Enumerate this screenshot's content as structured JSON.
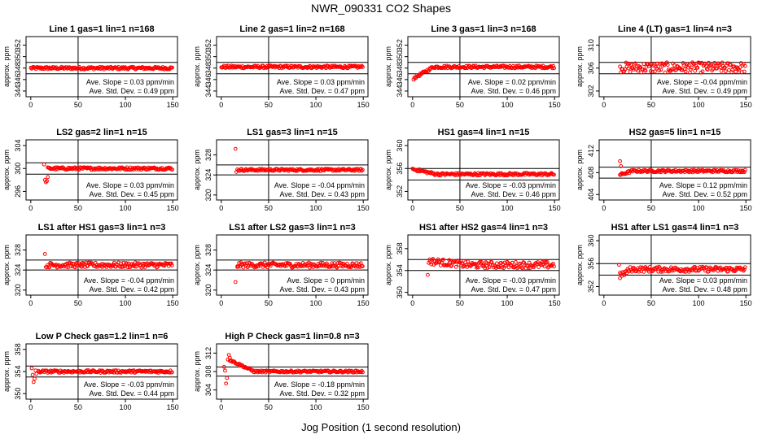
{
  "title": "NWR_090331  CO2 Shapes",
  "xlabel": "Jog Position (1 second resolution)",
  "colors": {
    "points": "#ff0000",
    "axes": "#000000"
  },
  "chart_data": [
    {
      "type": "scatter",
      "title": "Line 1 gas=1 lin=1 n=168",
      "ylabel": "approx. ppm",
      "ylim": [
        343,
        353.5
      ],
      "yticks": [
        344,
        346,
        348,
        350,
        352
      ],
      "xlim": [
        -5,
        155
      ],
      "xticks": [
        0,
        50,
        100,
        150
      ],
      "vline": 50,
      "hlines": [
        349,
        347
      ],
      "series": [
        {
          "name": "",
          "profile": {
            "type": "flat",
            "level": 348
          }
        }
      ],
      "outliers": [],
      "slope": "Ave. Slope =  0.03  ppm/min",
      "stddev": "Ave. Std. Dev. =  0.49  ppm"
    },
    {
      "type": "scatter",
      "title": "Line 2 gas=1 lin=2 n=168",
      "ylabel": "approx. ppm",
      "ylim": [
        343,
        353.5
      ],
      "yticks": [
        344,
        346,
        348,
        350,
        352
      ],
      "xlim": [
        -5,
        155
      ],
      "xticks": [
        0,
        50,
        100,
        150
      ],
      "vline": 50,
      "hlines": [
        349,
        347
      ],
      "series": [
        {
          "name": "",
          "profile": {
            "type": "flat",
            "level": 348.2
          }
        }
      ],
      "outliers": [],
      "slope": "Ave. Slope =  0.03  ppm/min",
      "stddev": "Ave. Std. Dev. =  0.47  ppm"
    },
    {
      "type": "scatter",
      "title": "Line 3 gas=1 lin=3 n=168",
      "ylabel": "approx. ppm",
      "ylim": [
        343,
        353.5
      ],
      "yticks": [
        344,
        346,
        348,
        350,
        352
      ],
      "xlim": [
        -5,
        155
      ],
      "xticks": [
        0,
        50,
        100,
        150
      ],
      "vline": 50,
      "hlines": [
        349,
        347
      ],
      "series": [
        {
          "name": "",
          "profile": {
            "type": "rise",
            "from": 346.2,
            "level": 348.2,
            "start": 1,
            "end": 22
          }
        }
      ],
      "outliers": [],
      "slope": "Ave. Slope =  0.02  ppm/min",
      "stddev": "Ave. Std. Dev. =  0.46  ppm"
    },
    {
      "type": "scatter",
      "title": "Line 4 (LT) gas=1 lin=4 n=3",
      "ylabel": "approx. ppm",
      "ylim": [
        301,
        311.5
      ],
      "yticks": [
        302,
        306,
        310
      ],
      "xlim": [
        -5,
        155
      ],
      "xticks": [
        0,
        50,
        100,
        150
      ],
      "vline": 50,
      "hlines": [
        307,
        305
      ],
      "series": [
        {
          "name": "",
          "profile": {
            "type": "noisy",
            "level": 306.1,
            "start": 17,
            "noise": 0.9
          }
        }
      ],
      "outliers": [],
      "slope": "Ave. Slope =  -0.04  ppm/min",
      "stddev": "Ave. Std. Dev. =  0.49  ppm"
    },
    {
      "type": "scatter",
      "title": "LS2 gas=2 lin=1 n=15",
      "ylabel": "approx. ppm",
      "ylim": [
        294.5,
        305
      ],
      "yticks": [
        296,
        300,
        304
      ],
      "xlim": [
        -5,
        155
      ],
      "xticks": [
        0,
        50,
        100,
        150
      ],
      "vline": 50,
      "hlines": [
        301,
        299
      ],
      "series": [
        {
          "name": "",
          "profile": {
            "type": "flat",
            "level": 300,
            "start": 18
          }
        }
      ],
      "outliers": [
        [
          14,
          300.7
        ],
        [
          15,
          298
        ],
        [
          16,
          297.6
        ],
        [
          17,
          297.8
        ],
        [
          18,
          298.5
        ]
      ],
      "slope": "Ave. Slope =  0.03  ppm/min",
      "stddev": "Ave. Std. Dev. =  0.45  ppm"
    },
    {
      "type": "scatter",
      "title": "LS1 gas=3 lin=1 n=15",
      "ylabel": "approx. ppm",
      "ylim": [
        319,
        331
      ],
      "yticks": [
        320,
        324,
        328
      ],
      "xlim": [
        -5,
        155
      ],
      "xticks": [
        0,
        50,
        100,
        150
      ],
      "vline": 50,
      "hlines": [
        326,
        324
      ],
      "series": [
        {
          "name": "",
          "profile": {
            "type": "flat",
            "level": 325,
            "start": 17
          }
        }
      ],
      "outliers": [
        [
          15,
          329.2
        ],
        [
          16,
          324.6
        ]
      ],
      "slope": "Ave. Slope =  -0.04  ppm/min",
      "stddev": "Ave. Std. Dev. =  0.43  ppm"
    },
    {
      "type": "scatter",
      "title": "HS1 gas=4 lin=1 n=15",
      "ylabel": "approx. ppm",
      "ylim": [
        350.5,
        361
      ],
      "yticks": [
        352,
        356,
        360
      ],
      "xlim": [
        -5,
        155
      ],
      "xticks": [
        0,
        50,
        100,
        150
      ],
      "vline": 50,
      "hlines": [
        356,
        354
      ],
      "series": [
        {
          "name": "",
          "profile": {
            "type": "decay",
            "from": 355.9,
            "level": 355,
            "start": 0,
            "end": 25
          }
        }
      ],
      "outliers": [],
      "slope": "Ave. Slope =  -0.03  ppm/min",
      "stddev": "Ave. Std. Dev. =  0.46  ppm"
    },
    {
      "type": "scatter",
      "title": "HS2 gas=5 lin=1 n=15",
      "ylabel": "approx. ppm",
      "ylim": [
        403,
        414
      ],
      "yticks": [
        404,
        408,
        412
      ],
      "xlim": [
        -5,
        155
      ],
      "xticks": [
        0,
        50,
        100,
        150
      ],
      "vline": 50,
      "hlines": [
        409,
        407
      ],
      "series": [
        {
          "name": "",
          "profile": {
            "type": "rise",
            "from": 407.6,
            "level": 408.3,
            "start": 17,
            "end": 30
          }
        }
      ],
      "outliers": [
        [
          17,
          410.1
        ],
        [
          18,
          409.2
        ],
        [
          18,
          407.7
        ]
      ],
      "slope": "Ave. Slope =  0.12  ppm/min",
      "stddev": "Ave. Std. Dev. =  0.52  ppm"
    },
    {
      "type": "scatter",
      "title": "LS1 after HS1 gas=3 lin=1 n=3",
      "ylabel": "approx. ppm",
      "ylim": [
        319,
        331
      ],
      "yticks": [
        320,
        324,
        328
      ],
      "xlim": [
        -5,
        155
      ],
      "xticks": [
        0,
        50,
        100,
        150
      ],
      "vline": 50,
      "hlines": [
        326,
        324
      ],
      "series": [
        {
          "name": "",
          "profile": {
            "type": "noisy",
            "level": 325,
            "start": 17,
            "noise": 0.5
          }
        }
      ],
      "outliers": [
        [
          15,
          327.2
        ],
        [
          16,
          324.6
        ]
      ],
      "slope": "Ave. Slope =  -0.04  ppm/min",
      "stddev": "Ave. Std. Dev. =  0.42  ppm"
    },
    {
      "type": "scatter",
      "title": "LS1 after LS2 gas=3 lin=1 n=3",
      "ylabel": "approx. ppm",
      "ylim": [
        319,
        331
      ],
      "yticks": [
        320,
        324,
        328
      ],
      "xlim": [
        -5,
        155
      ],
      "xticks": [
        0,
        50,
        100,
        150
      ],
      "vline": 50,
      "hlines": [
        326,
        324
      ],
      "series": [
        {
          "name": "",
          "profile": {
            "type": "noisy",
            "level": 325,
            "start": 17,
            "noise": 0.5
          }
        }
      ],
      "outliers": [
        [
          15,
          321.6
        ],
        [
          17,
          324.6
        ]
      ],
      "slope": "Ave. Slope =  0  ppm/min",
      "stddev": "Ave. Std. Dev. =  0.43  ppm"
    },
    {
      "type": "scatter",
      "title": "HS1 after HS2 gas=4 lin=1 n=3",
      "ylabel": "approx. ppm",
      "ylim": [
        349.5,
        360.5
      ],
      "yticks": [
        350,
        354,
        358
      ],
      "xlim": [
        -5,
        155
      ],
      "xticks": [
        0,
        50,
        100,
        150
      ],
      "vline": 50,
      "hlines": [
        356,
        354
      ],
      "series": [
        {
          "name": "",
          "profile": {
            "type": "decay",
            "from": 355.7,
            "level": 355,
            "start": 18,
            "end": 60,
            "noise": 0.6
          }
        }
      ],
      "outliers": [
        [
          16,
          353.2
        ],
        [
          17,
          355.4
        ]
      ],
      "slope": "Ave. Slope =  -0.03  ppm/min",
      "stddev": "Ave. Std. Dev. =  0.47  ppm"
    },
    {
      "type": "scatter",
      "title": "HS1 after LS1 gas=4 lin=1 n=3",
      "ylabel": "approx. ppm",
      "ylim": [
        350.5,
        361
      ],
      "yticks": [
        352,
        356,
        360
      ],
      "xlim": [
        -5,
        155
      ],
      "xticks": [
        0,
        50,
        100,
        150
      ],
      "vline": 50,
      "hlines": [
        356,
        354
      ],
      "series": [
        {
          "name": "",
          "profile": {
            "type": "rise",
            "from": 353.8,
            "level": 355,
            "start": 17,
            "end": 28,
            "noise": 0.45
          }
        }
      ],
      "outliers": [
        [
          16,
          355.8
        ],
        [
          17,
          354.4
        ]
      ],
      "slope": "Ave. Slope =  0.03  ppm/min",
      "stddev": "Ave. Std. Dev. =  0.48  ppm"
    },
    {
      "type": "scatter",
      "title": "Low P Check gas=1.2 lin=1 n=6",
      "ylabel": "approx. ppm",
      "ylim": [
        349,
        359
      ],
      "yticks": [
        350,
        354,
        358
      ],
      "xlim": [
        -5,
        155
      ],
      "xticks": [
        0,
        50,
        100,
        150
      ],
      "vline": 50,
      "hlines": [
        355,
        353
      ],
      "series": [
        {
          "name": "",
          "profile": {
            "type": "flat",
            "level": 354,
            "start": 8
          }
        }
      ],
      "outliers": [
        [
          1,
          354.6
        ],
        [
          2,
          353.4
        ],
        [
          3,
          352.1
        ],
        [
          4,
          352.7
        ],
        [
          5,
          354.2
        ],
        [
          6,
          353.6
        ]
      ],
      "slope": "Ave. Slope =  -0.03  ppm/min",
      "stddev": "Ave. Std. Dev. =  0.44  ppm"
    },
    {
      "type": "scatter",
      "title": "High P Check gas=1 lin=0.8 n=3",
      "ylabel": "approx. ppm",
      "ylim": [
        302,
        314
      ],
      "yticks": [
        304,
        308,
        312
      ],
      "xlim": [
        -5,
        155
      ],
      "xticks": [
        0,
        50,
        100,
        150
      ],
      "vline": 50,
      "hlines": [
        309,
        307
      ],
      "series": [
        {
          "name": "",
          "profile": {
            "type": "decay",
            "from": 310.5,
            "level": 308,
            "start": 9,
            "end": 35
          }
        }
      ],
      "outliers": [
        [
          3,
          309
        ],
        [
          4,
          308.2
        ],
        [
          5,
          305.4
        ],
        [
          6,
          306.6
        ],
        [
          7,
          310.6
        ],
        [
          8,
          311.6
        ],
        [
          9,
          311
        ]
      ],
      "slope": "Ave. Slope =  -0.18  ppm/min",
      "stddev": "Ave. Std. Dev. =  0.32  ppm"
    }
  ]
}
